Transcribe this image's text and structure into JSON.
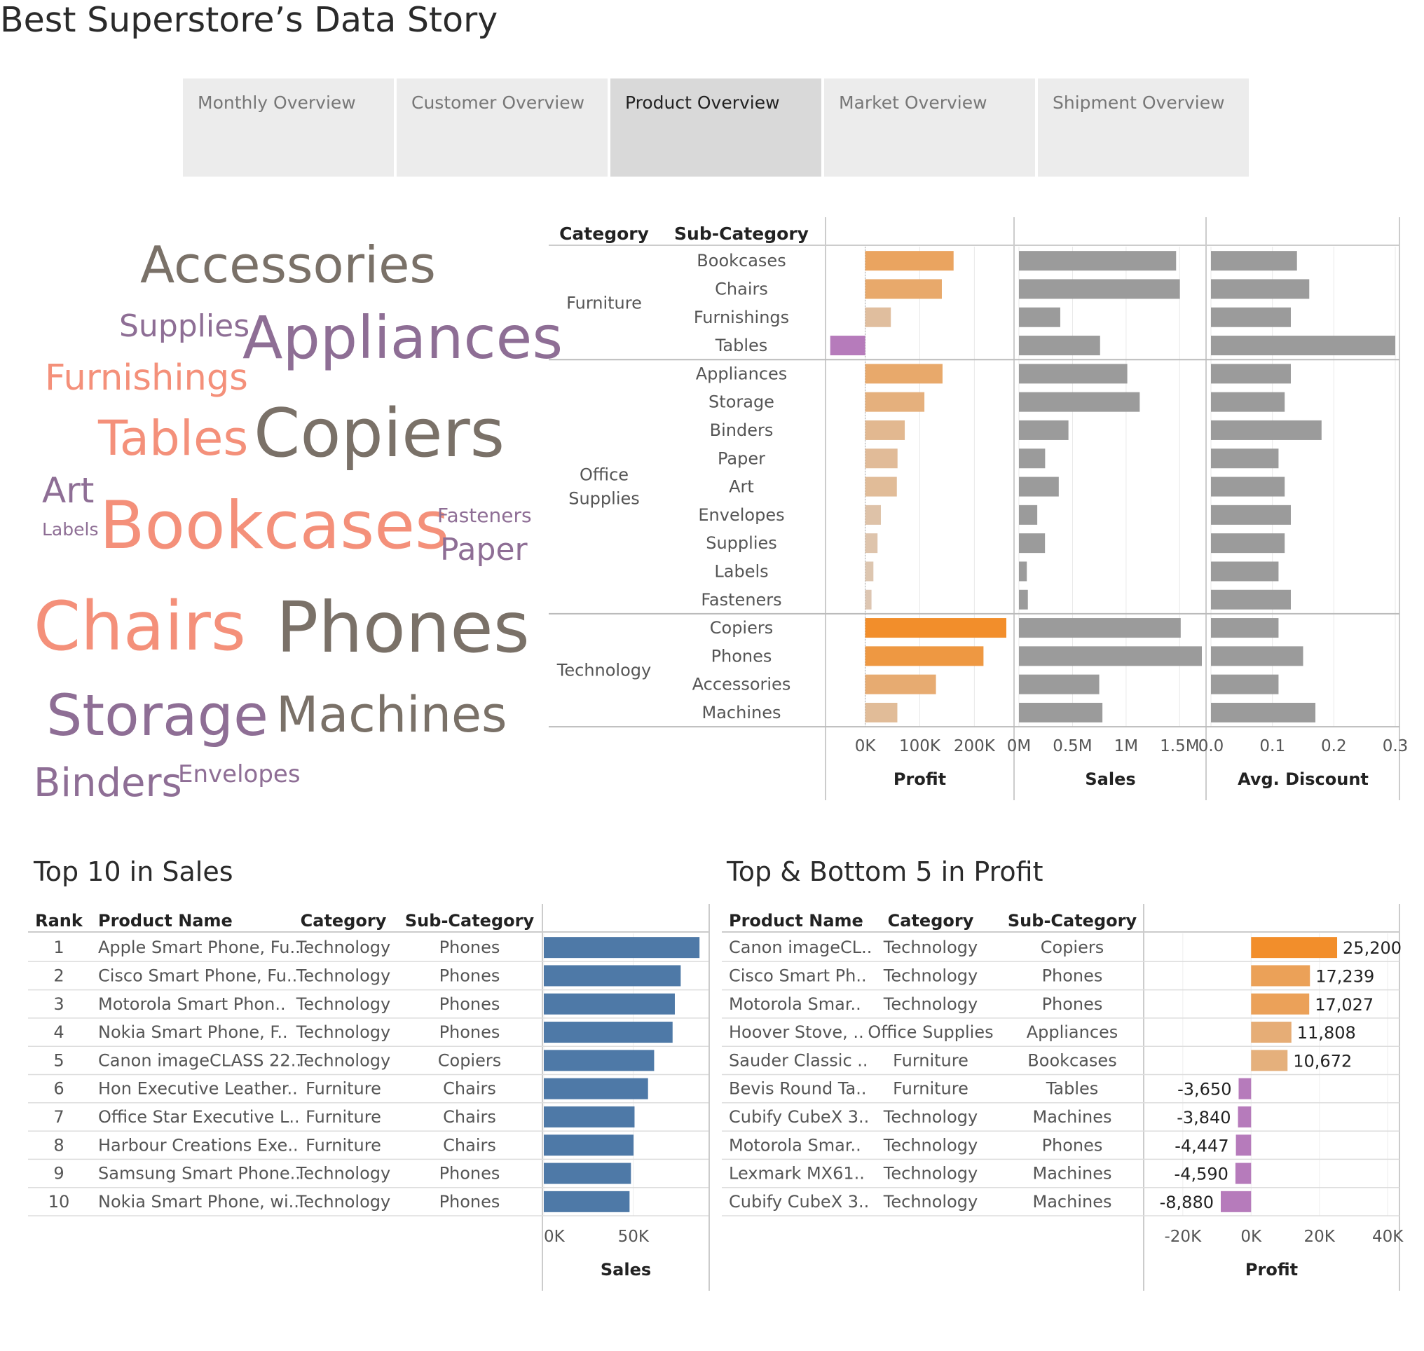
{
  "dashboard": {
    "title": "Best Superstore’s Data Story",
    "tabs": [
      {
        "label": "Monthly Overview",
        "active": false
      },
      {
        "label": "Customer Overview",
        "active": false
      },
      {
        "label": "Product Overview",
        "active": true
      },
      {
        "label": "Market Overview",
        "active": false
      },
      {
        "label": "Shipment Overview",
        "active": false
      }
    ]
  },
  "word_cloud": {
    "words": [
      {
        "text": "Accessories",
        "color": "#7a7168"
      },
      {
        "text": "Supplies",
        "color": "#8e6e95"
      },
      {
        "text": "Appliances",
        "color": "#8e6e95"
      },
      {
        "text": "Furnishings",
        "color": "#f4907a"
      },
      {
        "text": "Tables",
        "color": "#f4907a"
      },
      {
        "text": "Copiers",
        "color": "#7a7168"
      },
      {
        "text": "Art",
        "color": "#8e6e95"
      },
      {
        "text": "Labels",
        "color": "#8e6e95"
      },
      {
        "text": "Bookcases",
        "color": "#f4907a"
      },
      {
        "text": "Fasteners",
        "color": "#8e6e95"
      },
      {
        "text": "Paper",
        "color": "#8e6e95"
      },
      {
        "text": "Chairs",
        "color": "#f4907a"
      },
      {
        "text": "Phones",
        "color": "#7a7168"
      },
      {
        "text": "Storage",
        "color": "#8e6e95"
      },
      {
        "text": "Machines",
        "color": "#7a7168"
      },
      {
        "text": "Binders",
        "color": "#8e6e95"
      },
      {
        "text": "Envelopes",
        "color": "#8e6e95"
      }
    ]
  },
  "chart_data": [
    {
      "type": "bar",
      "name": "subcategory-breakdown",
      "headers": {
        "category": "Category",
        "subcategory": "Sub-Category"
      },
      "axis_titles": [
        "Profit",
        "Sales",
        "Avg. Discount"
      ],
      "groups": [
        {
          "label": "Furniture",
          "rows": [
            "Bookcases",
            "Chairs",
            "Furnishings",
            "Tables"
          ]
        },
        {
          "label": "Office\nSupplies",
          "rows": [
            "Appliances",
            "Storage",
            "Binders",
            "Paper",
            "Art",
            "Envelopes",
            "Supplies",
            "Labels",
            "Fasteners"
          ]
        },
        {
          "label": "Technology",
          "rows": [
            "Copiers",
            "Phones",
            "Accessories",
            "Machines"
          ]
        }
      ],
      "series": [
        {
          "name": "Profit",
          "values": [
            161924,
            140396,
            46967,
            -64083,
            141681,
            108461,
            72449,
            59207,
            57953,
            28690,
            22583,
            15010,
            11525,
            258568,
            216717,
            129627,
            58868
          ]
        },
        {
          "name": "Sales",
          "values": [
            1466572,
            1501682,
            385578,
            757042,
            1011064,
            1127086,
            461912,
            244292,
            371613,
            170904,
            243075,
            73404,
            83243,
            1509436,
            1706824,
            749237,
            779060
          ]
        },
        {
          "name": "Avg. Discount",
          "values": [
            0.14,
            0.16,
            0.13,
            0.3,
            0.13,
            0.12,
            0.18,
            0.11,
            0.12,
            0.13,
            0.12,
            0.11,
            0.13,
            0.11,
            0.15,
            0.11,
            0.17
          ]
        }
      ],
      "axes": {
        "profit": {
          "range": [
            -65000,
            265000
          ],
          "ticks": [
            {
              "v": 0,
              "label": "0K"
            },
            {
              "v": 100000,
              "label": "100K"
            },
            {
              "v": 200000,
              "label": "200K"
            }
          ]
        },
        "sales": {
          "range": [
            0,
            1706824
          ],
          "ticks": [
            {
              "v": 0,
              "label": "0M"
            },
            {
              "v": 500000,
              "label": "0.5M"
            },
            {
              "v": 1000000,
              "label": "1M"
            },
            {
              "v": 1500000,
              "label": "1.5M"
            }
          ]
        },
        "discount": {
          "range": [
            0,
            0.3
          ],
          "ticks": [
            {
              "v": 0,
              "label": "0.0"
            },
            {
              "v": 0.1,
              "label": "0.1"
            },
            {
              "v": 0.2,
              "label": "0.2"
            },
            {
              "v": 0.3,
              "label": "0.3"
            }
          ]
        }
      }
    },
    {
      "type": "bar",
      "name": "top10-sales",
      "title": "Top 10 in Sales",
      "headers": [
        "Rank",
        "Product Name",
        "Category",
        "Sub-Category"
      ],
      "rows": [
        {
          "rank": "1",
          "product": "Apple Smart Phone, Fu..",
          "category": "Technology",
          "subcategory": "Phones",
          "sales": 86936
        },
        {
          "rank": "2",
          "product": "Cisco Smart Phone, Fu..",
          "category": "Technology",
          "subcategory": "Phones",
          "sales": 76442
        },
        {
          "rank": "3",
          "product": "Motorola Smart Phon..",
          "category": "Technology",
          "subcategory": "Phones",
          "sales": 73156
        },
        {
          "rank": "4",
          "product": "Nokia Smart Phone, F..",
          "category": "Technology",
          "subcategory": "Phones",
          "sales": 71904
        },
        {
          "rank": "5",
          "product": "Canon imageCLASS 22..",
          "category": "Technology",
          "subcategory": "Copiers",
          "sales": 61600
        },
        {
          "rank": "6",
          "product": "Hon Executive Leather..",
          "category": "Furniture",
          "subcategory": "Chairs",
          "sales": 58193
        },
        {
          "rank": "7",
          "product": "Office Star Executive L..",
          "category": "Furniture",
          "subcategory": "Chairs",
          "sales": 50662
        },
        {
          "rank": "8",
          "product": "Harbour Creations Exe..",
          "category": "Furniture",
          "subcategory": "Chairs",
          "sales": 50122
        },
        {
          "rank": "9",
          "product": "Samsung Smart Phone..",
          "category": "Technology",
          "subcategory": "Phones",
          "sales": 48653
        },
        {
          "rank": "10",
          "product": "Nokia Smart Phone, wi..",
          "category": "Technology",
          "subcategory": "Phones",
          "sales": 47877
        }
      ],
      "axis": {
        "title": "Sales",
        "range": [
          0,
          90000
        ],
        "ticks": [
          {
            "v": 0,
            "label": "0K"
          },
          {
            "v": 50000,
            "label": "50K"
          }
        ]
      },
      "bar_color": "#4e79a7"
    },
    {
      "type": "bar",
      "name": "top-bottom-profit",
      "title": "Top & Bottom 5 in Profit",
      "headers": [
        "Product Name",
        "Category",
        "Sub-Category"
      ],
      "rows": [
        {
          "product": "Canon imageCL..",
          "category": "Technology",
          "subcategory": "Copiers",
          "profit": 25200,
          "label": "25,200"
        },
        {
          "product": "Cisco Smart Ph..",
          "category": "Technology",
          "subcategory": "Phones",
          "profit": 17239,
          "label": "17,239"
        },
        {
          "product": "Motorola Smar..",
          "category": "Technology",
          "subcategory": "Phones",
          "profit": 17027,
          "label": "17,027"
        },
        {
          "product": "Hoover Stove, ..",
          "category": "Office Supplies",
          "subcategory": "Appliances",
          "profit": 11808,
          "label": "11,808"
        },
        {
          "product": "Sauder Classic ..",
          "category": "Furniture",
          "subcategory": "Bookcases",
          "profit": 10672,
          "label": "10,672"
        },
        {
          "product": "Bevis Round Ta..",
          "category": "Furniture",
          "subcategory": "Tables",
          "profit": -3650,
          "label": "-3,650"
        },
        {
          "product": "Cubify CubeX 3..",
          "category": "Technology",
          "subcategory": "Machines",
          "profit": -3840,
          "label": "-3,840"
        },
        {
          "product": "Motorola Smar..",
          "category": "Technology",
          "subcategory": "Phones",
          "profit": -4447,
          "label": "-4,447"
        },
        {
          "product": "Lexmark MX61..",
          "category": "Technology",
          "subcategory": "Machines",
          "profit": -4590,
          "label": "-4,590"
        },
        {
          "product": "Cubify CubeX 3..",
          "category": "Technology",
          "subcategory": "Machines",
          "profit": -8880,
          "label": "-8,880"
        }
      ],
      "axis": {
        "title": "Profit",
        "range": [
          -29000,
          41000
        ],
        "ticks": [
          {
            "v": -20000,
            "label": "-20K"
          },
          {
            "v": 0,
            "label": "0K"
          },
          {
            "v": 20000,
            "label": "20K"
          },
          {
            "v": 40000,
            "label": "40K"
          }
        ]
      }
    }
  ],
  "colors": {
    "profit_high": "#f28e2b",
    "profit_low": "#dcc9b8",
    "profit_negative": "#b67bbb",
    "gray_bar": "#9b9b9b",
    "blue_bar": "#4e79a7"
  }
}
